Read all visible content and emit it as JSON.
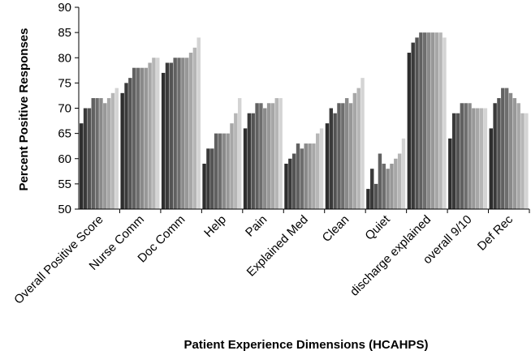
{
  "chart_data": {
    "type": "bar",
    "title": "",
    "xlabel": "Patient Experience Dimensions (HCAHPS)",
    "ylabel": "Percent Positive Responses",
    "ylim": [
      50,
      90
    ],
    "yticks": [
      50,
      55,
      60,
      65,
      70,
      75,
      80,
      85,
      90
    ],
    "grid": false,
    "legend": "none",
    "categories": [
      "Overall Positive Score",
      "Nurse Comm",
      "Doc Comm",
      "Help",
      "Pain",
      "Explained Med",
      "Clean",
      "Quiet",
      "discharge explained",
      "overall 9/10",
      "Def Rec"
    ],
    "bar_colors": [
      "#2e2e2e",
      "#3a3a3a",
      "#474747",
      "#545454",
      "#616161",
      "#6e6e6e",
      "#7c7c7c",
      "#8a8a8a",
      "#989898",
      "#a7a7a7",
      "#b6b6b6",
      "#c5c5c5",
      "#d4d4d4"
    ],
    "groups": [
      [
        67,
        70,
        70,
        72,
        72,
        72,
        71,
        72,
        73,
        74
      ],
      [
        73,
        75,
        76,
        78,
        78,
        78,
        78,
        79,
        80,
        80
      ],
      [
        77,
        79,
        79,
        80,
        80,
        80,
        80,
        81,
        82,
        84
      ],
      [
        59,
        62,
        62,
        65,
        65,
        65,
        65,
        67,
        69,
        72
      ],
      [
        66,
        69,
        69,
        71,
        71,
        70,
        71,
        71,
        72,
        72
      ],
      [
        59,
        60,
        61,
        63,
        62,
        63,
        63,
        63,
        65,
        66
      ],
      [
        67,
        70,
        69,
        71,
        71,
        72,
        71,
        73,
        74,
        76
      ],
      [
        54,
        58,
        55,
        61,
        59,
        58,
        59,
        60,
        61,
        64
      ],
      [
        81,
        83,
        84,
        85,
        85,
        85,
        85,
        85,
        85,
        84
      ],
      [
        64,
        69,
        69,
        71,
        71,
        71,
        70,
        70,
        70,
        70
      ],
      [
        66,
        71,
        72,
        74,
        74,
        73,
        72,
        71,
        69,
        69
      ]
    ]
  }
}
